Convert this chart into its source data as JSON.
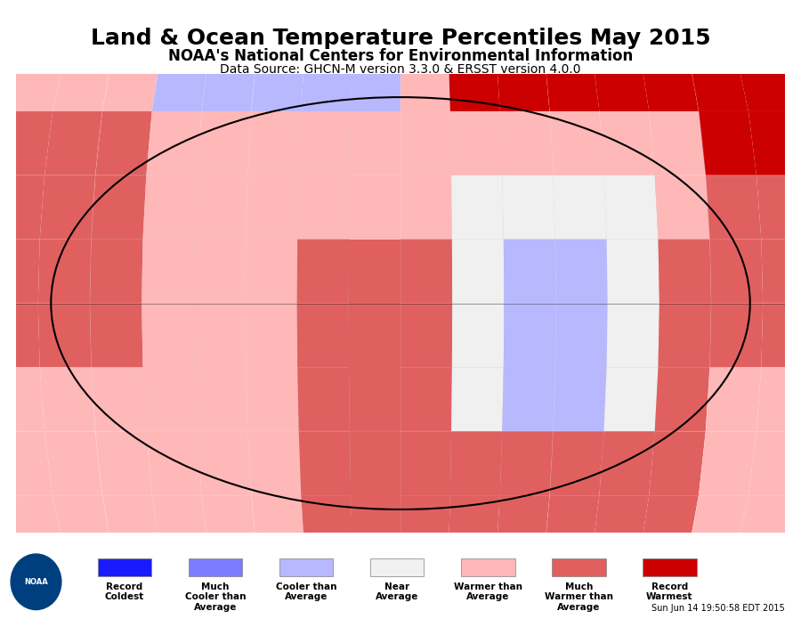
{
  "title": "Land & Ocean Temperature Percentiles May 2015",
  "subtitle1": "NOAA's National Centers for Environmental Information",
  "subtitle2": "Data Source: GHCN-M version 3.3.0 & ERSST version 4.0.0",
  "timestamp": "Sun Jun 14 19:50:58 EDT 2015",
  "legend_labels": [
    "Record\nColdest",
    "Much\nCooler than\nAverage",
    "Cooler than\nAverage",
    "Near\nAverage",
    "Warmer than\nAverage",
    "Much\nWarmer than\nAverage",
    "Record\nWarmest"
  ],
  "legend_colors": [
    "#1a1aff",
    "#7b7bff",
    "#b8b8ff",
    "#f0f0f0",
    "#ffb8b8",
    "#e06060",
    "#cc0000"
  ],
  "bg_color": "#f5f5f5",
  "ocean_color": "#c8c8c8",
  "map_bg": "#d0d0d0"
}
